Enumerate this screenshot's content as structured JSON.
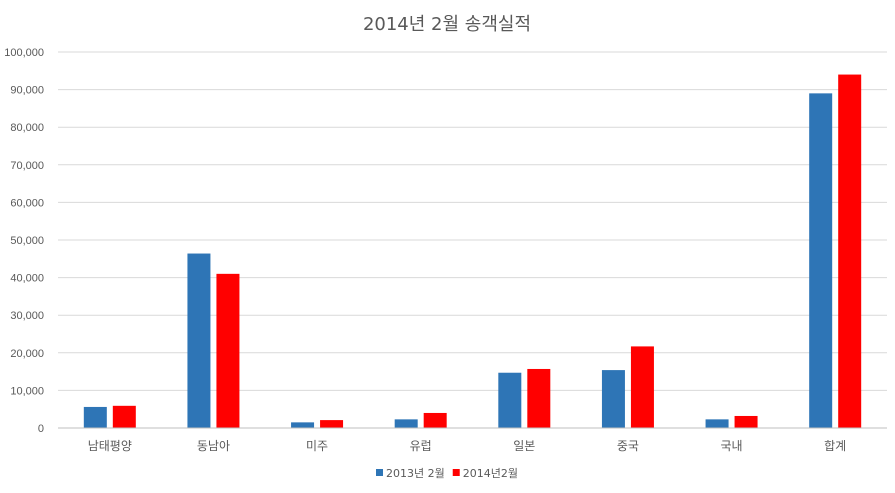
{
  "chart_data": {
    "type": "bar",
    "title": "2014년 2월 송객실적",
    "xlabel": "",
    "ylabel": "",
    "categories": [
      "남태평양",
      "동남아",
      "미주",
      "유럽",
      "일본",
      "중국",
      "국내",
      "합계"
    ],
    "series": [
      {
        "name": "2013년 2월",
        "color": "#2e75b6",
        "values": [
          5600,
          46400,
          1500,
          2300,
          14700,
          15400,
          2300,
          89000
        ]
      },
      {
        "name": "2014년2월",
        "color": "#ff0000",
        "values": [
          5900,
          41000,
          2100,
          4000,
          15700,
          21700,
          3200,
          94000
        ]
      }
    ],
    "ylim": [
      0,
      100000
    ],
    "yticks": [
      "0",
      "10,000",
      "20,000",
      "30,000",
      "40,000",
      "50,000",
      "60,000",
      "70,000",
      "80,000",
      "90,000",
      "100,000"
    ],
    "grid": true,
    "legend_position": "bottom"
  }
}
